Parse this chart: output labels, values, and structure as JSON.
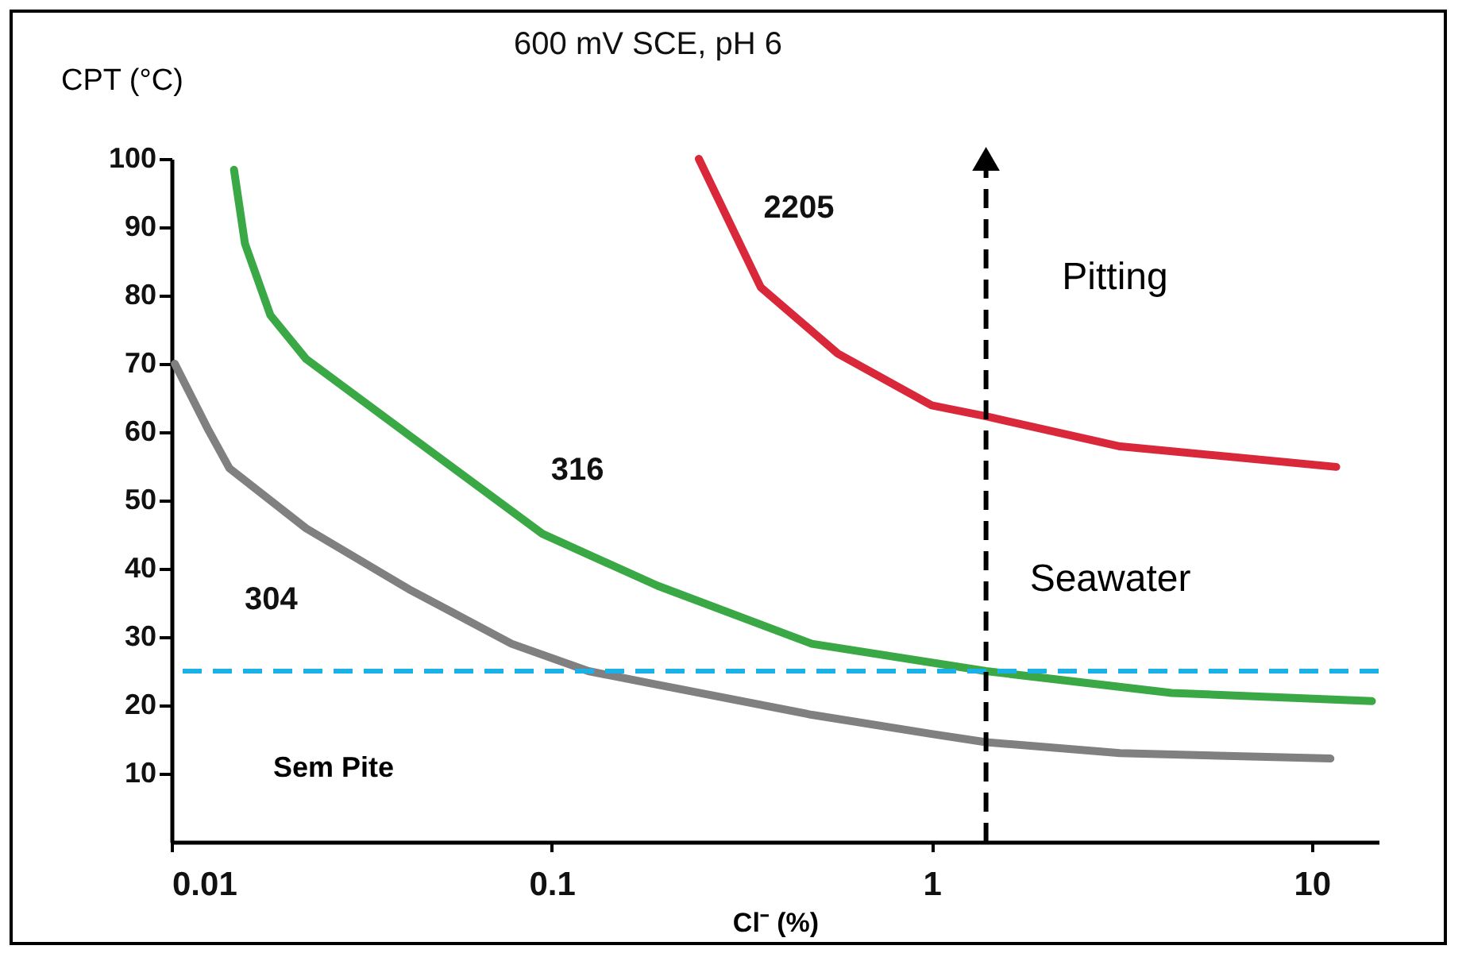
{
  "chart_data": {
    "type": "line",
    "title": "600 mV SCE, pH 6",
    "xlabel": "Cl⁻ (%)",
    "ylabel": "CPT (°C)",
    "log": "x",
    "xlim": [
      0.01,
      15
    ],
    "xticks": [
      0.01,
      0.1,
      1,
      10
    ],
    "ylim": [
      0,
      100
    ],
    "yticks": [
      10,
      20,
      30,
      40,
      50,
      60,
      70,
      80,
      90,
      100
    ],
    "grid": false,
    "marker": "none",
    "line_style": "solid",
    "series": [
      {
        "name": "304",
        "color": "#808080",
        "x": [
          0.0102,
          0.0125,
          0.0142,
          0.0226,
          0.0421,
          0.0785,
          0.125,
          0.19,
          0.484,
          1,
          1.39,
          3.13,
          11.2
        ],
        "values": [
          70,
          60.3,
          54.7,
          45.9,
          37,
          29,
          25,
          23,
          18.6,
          15.8,
          14.6,
          13,
          12.2
        ]
      },
      {
        "name": "316",
        "color": "#3aa845",
        "x": [
          0.0146,
          0.0156,
          0.0182,
          0.0226,
          0.042,
          0.0946,
          0.19,
          0.484,
          1.39,
          4.28,
          14.4
        ],
        "values": [
          98.4,
          87.6,
          77.1,
          70.7,
          59.6,
          45.1,
          37.5,
          29,
          25,
          21.8,
          20.6
        ]
      },
      {
        "name": "2205",
        "color": "#d8283a",
        "x": [
          0.244,
          0.355,
          0.566,
          1,
          1.39,
          3.13,
          11.6
        ],
        "values": [
          100,
          81.2,
          71.5,
          63.9,
          62.3,
          57.9,
          54.9
        ]
      }
    ],
    "ref_lines": [
      {
        "axis": "y",
        "value": 25,
        "color": "#1ab0e8",
        "line_style": "dashed"
      },
      {
        "axis": "x",
        "value": 1.39,
        "color": "#000000",
        "line_style": "dashed"
      }
    ],
    "annotations": [
      "Seawater",
      "Pitting",
      "Sem Pite"
    ]
  }
}
